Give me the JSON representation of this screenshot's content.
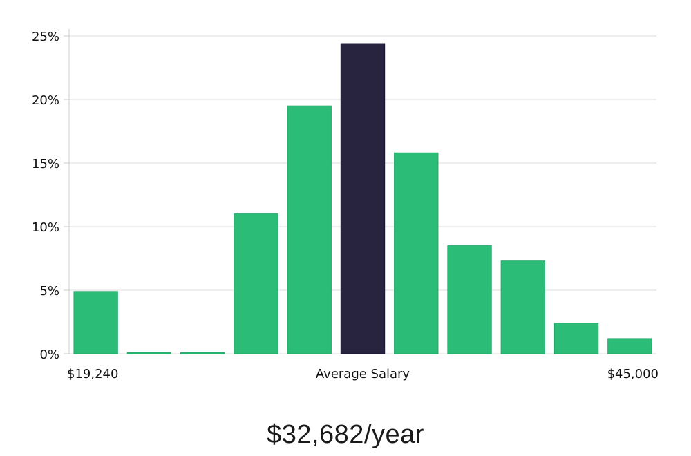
{
  "chart_data": {
    "type": "bar",
    "title": "",
    "xlabel": "Average Salary",
    "ylabel": "",
    "x_min_label": "$19,240",
    "x_max_label": "$45,000",
    "ylim": [
      0,
      25
    ],
    "yticks": [
      0,
      5,
      10,
      15,
      20,
      25
    ],
    "ytick_labels": [
      "0%",
      "5%",
      "10%",
      "15%",
      "20%",
      "25%"
    ],
    "grid": true,
    "values": [
      4.9,
      0.1,
      0.1,
      11.0,
      19.5,
      24.4,
      15.8,
      8.5,
      7.3,
      2.4,
      1.2
    ],
    "highlight_index": 5,
    "colors": {
      "bar": "#2bbd77",
      "highlight": "#28233f",
      "grid": "#dddddd",
      "axis": "#cccccc"
    }
  },
  "salary": {
    "display": "$32,682/year"
  }
}
